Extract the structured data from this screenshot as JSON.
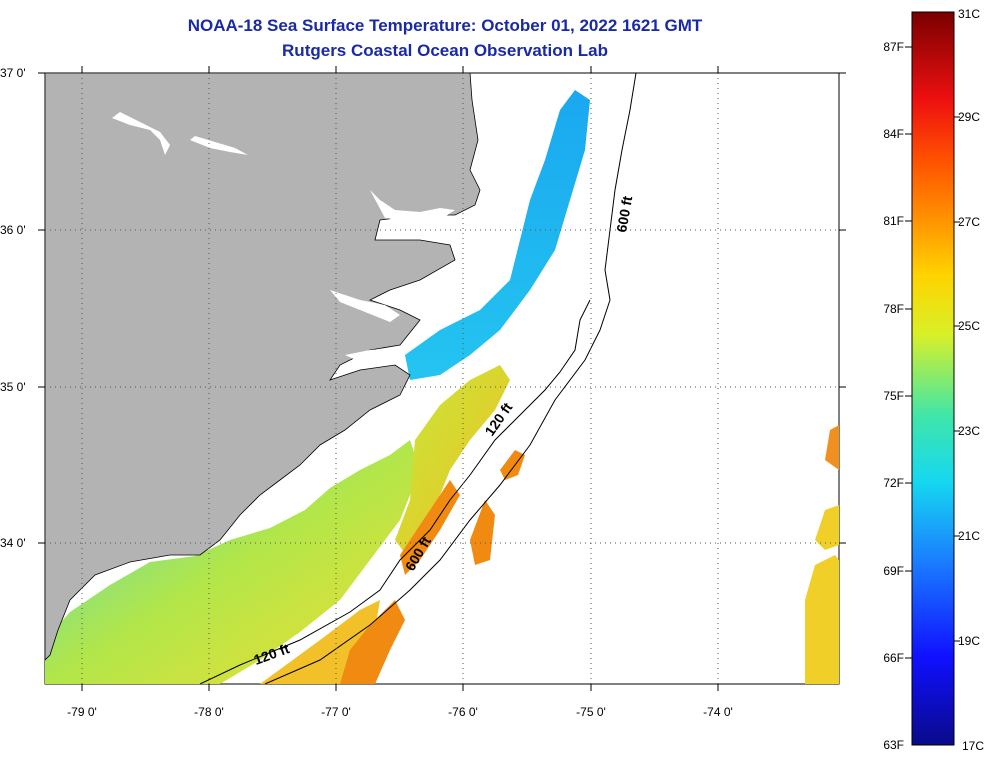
{
  "header": {
    "title_line1": "NOAA-18 Sea Surface Temperature:  October 01, 2022 1621 GMT",
    "title_line2": "Rutgers Coastal Ocean Observation Lab"
  },
  "map": {
    "lat_labels": [
      "37 0'",
      "36 0'",
      "35 0'",
      "34 0'"
    ],
    "lon_labels": [
      "-79 0'",
      "-78 0'",
      "-77 0'",
      "-76 0'",
      "-75 0'",
      "-74 0'"
    ],
    "contour_labels": [
      "600 ft",
      "120 ft",
      "600 ft",
      "120 ft"
    ],
    "colors": {
      "land": "#b3b3b3",
      "cloud_mask": "#ffffff"
    }
  },
  "colorbar": {
    "fahrenheit_labels": [
      "87F",
      "84F",
      "81F",
      "78F",
      "75F",
      "72F",
      "69F",
      "66F",
      "63F"
    ],
    "celsius_labels": [
      "31C",
      "29C",
      "27C",
      "25C",
      "23C",
      "21C",
      "19C",
      "17C"
    ],
    "range_c": [
      17,
      31
    ],
    "range_f": [
      63,
      87
    ]
  }
}
